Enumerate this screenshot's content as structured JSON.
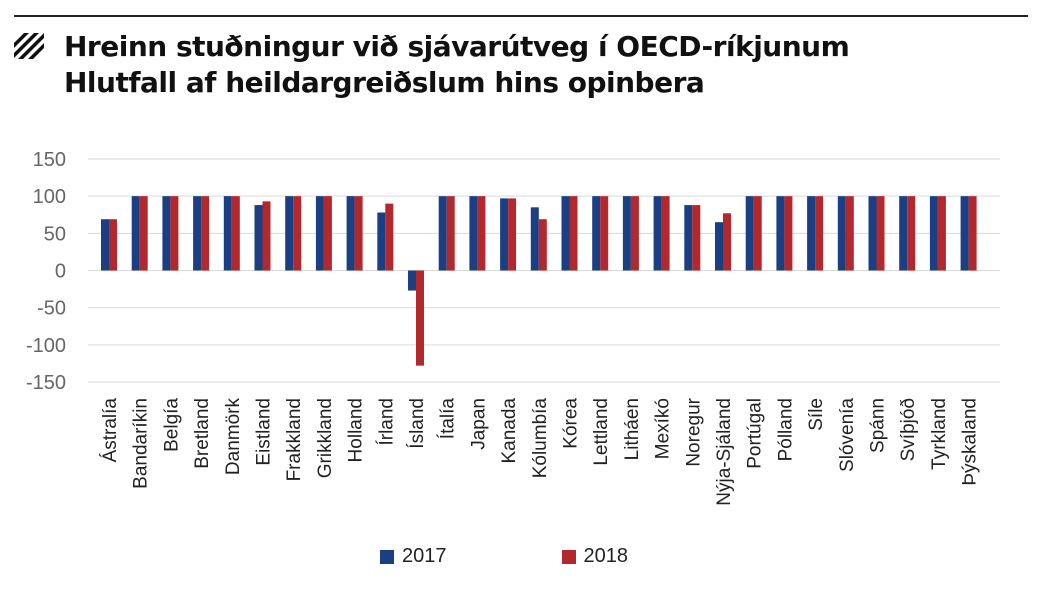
{
  "header": {
    "title_line1": "Hreinn stuðningur við sjávarútveg í OECD-ríkjunum",
    "title_line2": "Hlutfall af heildargreiðslum hins opinbera",
    "icon": "diagonal-stripes-icon"
  },
  "colors": {
    "series_2017": "#1a3f82",
    "series_2018": "#b3282d",
    "grid": "#d9d9d9",
    "rule": "#222222"
  },
  "chart_data": {
    "type": "bar",
    "title": "Hreinn stuðningur við sjávarútveg í OECD-ríkjunum",
    "subtitle": "Hlutfall af heildargreiðslum hins opinbera",
    "xlabel": "",
    "ylabel": "",
    "ylim": [
      -150,
      150
    ],
    "yticks": [
      150,
      100,
      50,
      0,
      -50,
      -100,
      -150
    ],
    "ytick_labels": [
      "150",
      "100",
      "50",
      "0",
      "-50",
      "-100",
      "-150"
    ],
    "grid": true,
    "legend_position": "bottom",
    "categories": [
      "Ástralía",
      "Bandaríkin",
      "Belgía",
      "Bretland",
      "Danmörk",
      "Eistland",
      "Frakkland",
      "Grikkland",
      "Holland",
      "Írland",
      "Ísland",
      "Ítalía",
      "Japan",
      "Kanada",
      "Kólumbía",
      "Kórea",
      "Lettland",
      "Litháen",
      "Mexíkó",
      "Noregur",
      "Nýja-Sjáland",
      "Portúgal",
      "Pólland",
      "Síle",
      "Slóvenía",
      "Spánn",
      "Svíþjóð",
      "Tyrkland",
      "Þýskaland"
    ],
    "series": [
      {
        "name": "2017",
        "values": [
          69,
          100,
          100,
          100,
          100,
          88,
          100,
          100,
          100,
          78,
          -27,
          100,
          100,
          97,
          85,
          100,
          100,
          100,
          100,
          88,
          65,
          100,
          100,
          100,
          100,
          100,
          100,
          100,
          100
        ]
      },
      {
        "name": "2018",
        "values": [
          69,
          100,
          100,
          100,
          100,
          93,
          100,
          100,
          100,
          90,
          -128,
          100,
          100,
          97,
          69,
          100,
          100,
          100,
          100,
          88,
          77,
          100,
          100,
          100,
          100,
          100,
          100,
          100,
          100
        ]
      }
    ]
  }
}
